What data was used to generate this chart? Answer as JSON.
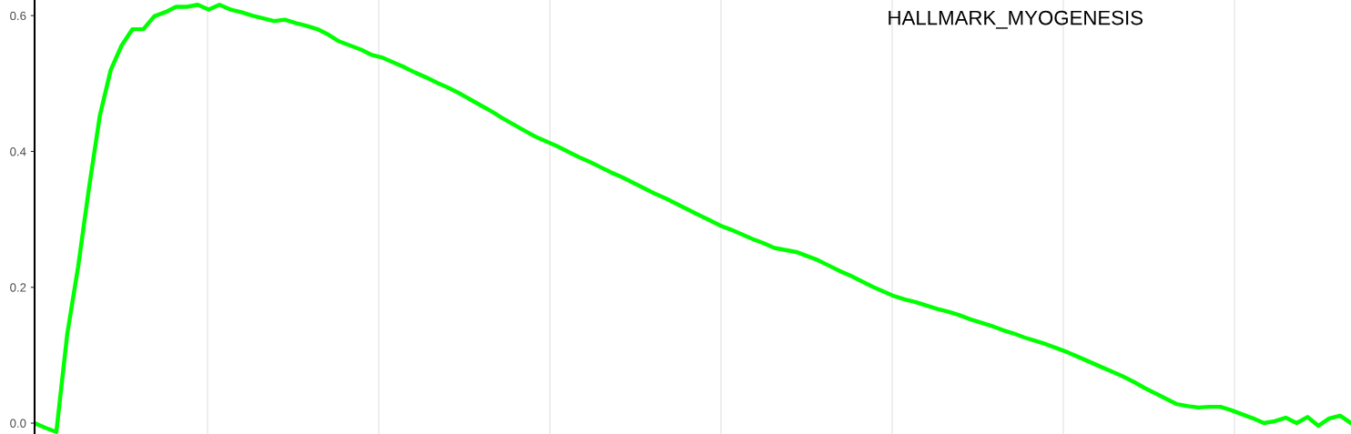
{
  "chart_data": {
    "type": "line",
    "categories": [
      null,
      null,
      null,
      null,
      null,
      null,
      null,
      null,
      null,
      null,
      null,
      null,
      null,
      null,
      null,
      null,
      null,
      null,
      null,
      null,
      null,
      null,
      null,
      null,
      null,
      null,
      null,
      null,
      null,
      null,
      null,
      null,
      null,
      null,
      null,
      null,
      null,
      null,
      null,
      null,
      null,
      null,
      null,
      null,
      null,
      null,
      null,
      null,
      null,
      null,
      null,
      null,
      null,
      null,
      null,
      null,
      null,
      null,
      null,
      null,
      null,
      null,
      null,
      null,
      null,
      null,
      null,
      null,
      null,
      null,
      null,
      null,
      null,
      null,
      null,
      null,
      null,
      null,
      null,
      null,
      null,
      null,
      null,
      null,
      null,
      null,
      null,
      null,
      null,
      null,
      null,
      null,
      null,
      null,
      null,
      null,
      null,
      null,
      null,
      null,
      null,
      null,
      null,
      null,
      null,
      null,
      null,
      null,
      null,
      null,
      null,
      null,
      null,
      null,
      null,
      null,
      null,
      null,
      null,
      null,
      null,
      null
    ],
    "series": [
      {
        "color": "#00ff00",
        "values": [
          0.0,
          -0.007,
          -0.013,
          0.131,
          0.23,
          0.346,
          0.453,
          0.52,
          0.556,
          0.58,
          0.58,
          0.599,
          0.605,
          0.613,
          0.613,
          0.616,
          0.609,
          0.616,
          0.609,
          0.605,
          0.6,
          0.596,
          0.592,
          0.594,
          0.589,
          0.585,
          0.58,
          0.572,
          0.562,
          0.556,
          0.55,
          0.542,
          0.538,
          0.531,
          0.524,
          0.516,
          0.509,
          0.501,
          0.494,
          0.486,
          0.477,
          0.468,
          0.459,
          0.449,
          0.44,
          0.431,
          0.422,
          0.415,
          0.408,
          0.4,
          0.392,
          0.385,
          0.377,
          0.369,
          0.362,
          0.354,
          0.346,
          0.338,
          0.331,
          0.323,
          0.315,
          0.307,
          0.299,
          0.291,
          0.285,
          0.278,
          0.271,
          0.265,
          0.258,
          0.255,
          0.252,
          0.246,
          0.24,
          0.232,
          0.224,
          0.217,
          0.209,
          0.201,
          0.194,
          0.187,
          0.182,
          0.178,
          0.173,
          0.168,
          0.164,
          0.159,
          0.153,
          0.148,
          0.143,
          0.137,
          0.132,
          0.126,
          0.121,
          0.116,
          0.11,
          0.104,
          0.097,
          0.09,
          0.083,
          0.076,
          0.069,
          0.061,
          0.052,
          0.044,
          0.036,
          0.028,
          0.025,
          0.023,
          0.024,
          0.024,
          0.019,
          0.013,
          0.007,
          0.0,
          0.003,
          0.008,
          0.0,
          0.009,
          -0.004,
          0.007,
          0.011,
          0.0
        ]
      }
    ],
    "ylim": [
      -0.016,
      0.623
    ],
    "yticks": [
      {
        "value": 0,
        "label": "0.0"
      },
      {
        "value": 0.2,
        "label": "0.2"
      },
      {
        "value": 0.4,
        "label": "0.4"
      },
      {
        "value": 0.6,
        "label": "0.6"
      }
    ],
    "grid": "x",
    "tick_labels": "y",
    "line_style": "solid",
    "marker": "none",
    "annotations": [
      "HALLMARK_MYOGENESIS"
    ]
  }
}
